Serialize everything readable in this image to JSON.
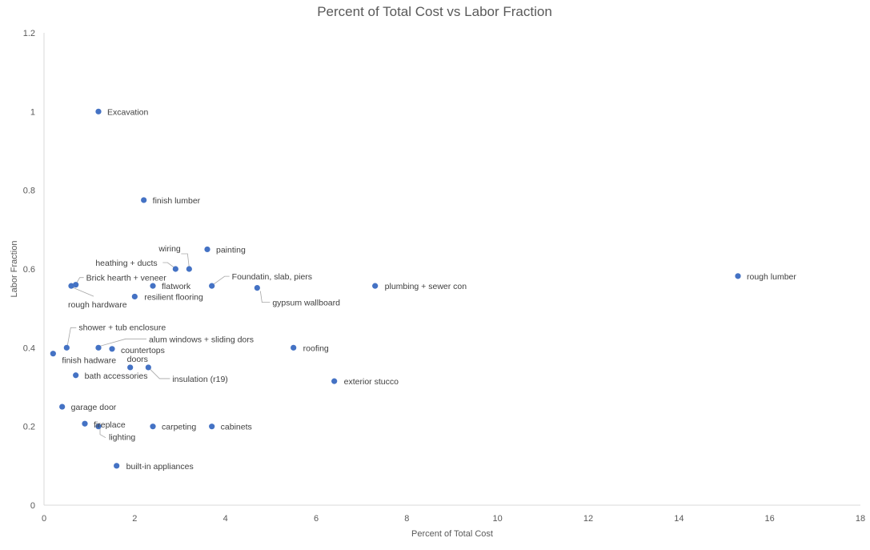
{
  "chart_data": {
    "type": "scatter",
    "title": "Percent of Total Cost vs Labor Fraction",
    "xlabel": "Percent of Total Cost",
    "ylabel": "Labor Fraction",
    "xlim": [
      0,
      18
    ],
    "ylim": [
      0,
      1.2
    ],
    "xticks": [
      "0",
      "2",
      "4",
      "6",
      "8",
      "10",
      "12",
      "14",
      "16",
      "18"
    ],
    "yticks": [
      "0",
      "0.2",
      "0.4",
      "0.6",
      "0.8",
      "1",
      "1.2"
    ],
    "grid": false,
    "legend": "none",
    "marker_color": "#4472c4",
    "points": [
      {
        "label": "Excavation",
        "x": 1.2,
        "y": 1.0
      },
      {
        "label": "finish lumber",
        "x": 2.2,
        "y": 0.775
      },
      {
        "label": "wiring",
        "x": 3.2,
        "y": 0.6
      },
      {
        "label": "painting",
        "x": 3.6,
        "y": 0.65
      },
      {
        "label": "heathing + ducts",
        "x": 2.9,
        "y": 0.6
      },
      {
        "label": "Brick hearth + veneer",
        "x": 0.7,
        "y": 0.56
      },
      {
        "label": "rough hardware",
        "x": 0.6,
        "y": 0.557
      },
      {
        "label": "flatwork",
        "x": 2.4,
        "y": 0.557
      },
      {
        "label": "Foundatin, slab, piers",
        "x": 3.7,
        "y": 0.557
      },
      {
        "label": "gypsum wallboard",
        "x": 4.7,
        "y": 0.552
      },
      {
        "label": "plumbing + sewer con",
        "x": 7.3,
        "y": 0.557
      },
      {
        "label": "rough lumber",
        "x": 15.3,
        "y": 0.582
      },
      {
        "label": "resilient flooring",
        "x": 2.0,
        "y": 0.53
      },
      {
        "label": "shower + tub enclosure",
        "x": 0.5,
        "y": 0.4
      },
      {
        "label": "finish hadware",
        "x": 0.2,
        "y": 0.385
      },
      {
        "label": "alum windows  + sliding dors",
        "x": 1.2,
        "y": 0.4
      },
      {
        "label": "countertops",
        "x": 1.5,
        "y": 0.397
      },
      {
        "label": "roofing",
        "x": 5.5,
        "y": 0.4
      },
      {
        "label": "doors",
        "x": 1.9,
        "y": 0.35
      },
      {
        "label": "insulation (r19)",
        "x": 2.3,
        "y": 0.35
      },
      {
        "label": "bath accessories",
        "x": 0.7,
        "y": 0.33
      },
      {
        "label": "exterior stucco",
        "x": 6.4,
        "y": 0.315
      },
      {
        "label": "garage door",
        "x": 0.4,
        "y": 0.25
      },
      {
        "label": "fireplace",
        "x": 0.9,
        "y": 0.207
      },
      {
        "label": "lighting",
        "x": 1.2,
        "y": 0.2
      },
      {
        "label": "carpeting",
        "x": 2.4,
        "y": 0.2
      },
      {
        "label": "cabinets",
        "x": 3.7,
        "y": 0.2
      },
      {
        "label": "built-in appliances",
        "x": 1.6,
        "y": 0.1
      }
    ]
  }
}
